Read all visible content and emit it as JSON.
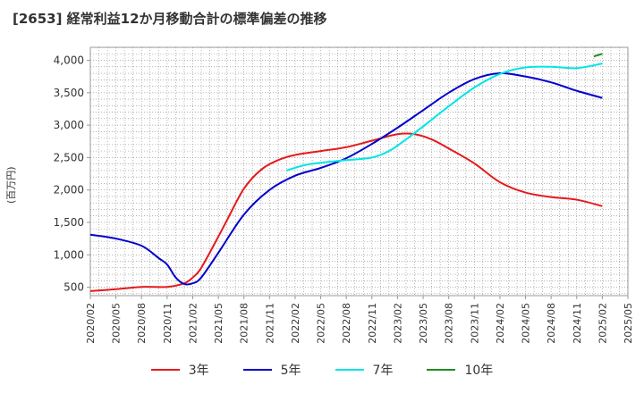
{
  "title": "[2653]  経常利益12か月移動合計の標準偏差の推移",
  "colors": {
    "grid": "#888888",
    "axis": "#999999",
    "tick": "#333333"
  },
  "chart_data": {
    "type": "line",
    "title": "[2653]  経常利益12か月移動合計の標準偏差の推移",
    "ylabel": "(百万円)",
    "xlabel": "",
    "ylim": [
      370,
      4200
    ],
    "x_tick_labels": [
      "2020/02",
      "2020/05",
      "2020/08",
      "2020/11",
      "2021/02",
      "2021/05",
      "2021/08",
      "2021/11",
      "2022/02",
      "2022/05",
      "2022/08",
      "2022/11",
      "2023/02",
      "2023/05",
      "2023/08",
      "2023/11",
      "2024/02",
      "2024/05",
      "2024/08",
      "2024/11",
      "2025/02",
      "2025/05"
    ],
    "y_ticks": [
      500,
      1000,
      1500,
      2000,
      2500,
      3000,
      3500,
      4000
    ],
    "y_tick_labels": [
      "500",
      "1,000",
      "1,500",
      "2,000",
      "2,500",
      "3,000",
      "3,500",
      "4,000"
    ],
    "grid": true,
    "legend_position": "bottom",
    "series": [
      {
        "name": "3年",
        "color": "#e41a1c",
        "points": [
          [
            "2020/02",
            440
          ],
          [
            "2020/05",
            470
          ],
          [
            "2020/08",
            505
          ],
          [
            "2020/11",
            505
          ],
          [
            "2021/01",
            560
          ],
          [
            "2021/02",
            650
          ],
          [
            "2021/03",
            800
          ],
          [
            "2021/05",
            1280
          ],
          [
            "2021/06",
            1530
          ],
          [
            "2021/08",
            2020
          ],
          [
            "2021/10",
            2310
          ],
          [
            "2021/12",
            2460
          ],
          [
            "2022/02",
            2540
          ],
          [
            "2022/05",
            2600
          ],
          [
            "2022/08",
            2660
          ],
          [
            "2022/11",
            2760
          ],
          [
            "2023/02",
            2860
          ],
          [
            "2023/04",
            2860
          ],
          [
            "2023/06",
            2780
          ],
          [
            "2023/08",
            2640
          ],
          [
            "2023/11",
            2410
          ],
          [
            "2024/02",
            2120
          ],
          [
            "2024/05",
            1960
          ],
          [
            "2024/08",
            1890
          ],
          [
            "2024/11",
            1850
          ],
          [
            "2025/02",
            1750
          ]
        ]
      },
      {
        "name": "5年",
        "color": "#0000cc",
        "points": [
          [
            "2020/02",
            1310
          ],
          [
            "2020/05",
            1250
          ],
          [
            "2020/08",
            1140
          ],
          [
            "2020/10",
            950
          ],
          [
            "2020/11",
            850
          ],
          [
            "2020/12",
            650
          ],
          [
            "2021/01",
            550
          ],
          [
            "2021/02",
            560
          ],
          [
            "2021/03",
            650
          ],
          [
            "2021/05",
            1030
          ],
          [
            "2021/08",
            1620
          ],
          [
            "2021/11",
            2000
          ],
          [
            "2022/02",
            2220
          ],
          [
            "2022/05",
            2340
          ],
          [
            "2022/08",
            2490
          ],
          [
            "2022/11",
            2710
          ],
          [
            "2023/02",
            2960
          ],
          [
            "2023/05",
            3230
          ],
          [
            "2023/08",
            3500
          ],
          [
            "2023/11",
            3710
          ],
          [
            "2024/02",
            3800
          ],
          [
            "2024/05",
            3750
          ],
          [
            "2024/08",
            3660
          ],
          [
            "2024/11",
            3530
          ],
          [
            "2025/02",
            3420
          ]
        ]
      },
      {
        "name": "7年",
        "color": "#00e5e5",
        "points": [
          [
            "2022/01",
            2300
          ],
          [
            "2022/03",
            2380
          ],
          [
            "2022/05",
            2420
          ],
          [
            "2022/08",
            2460
          ],
          [
            "2022/11",
            2500
          ],
          [
            "2023/01",
            2600
          ],
          [
            "2023/03",
            2780
          ],
          [
            "2023/05",
            2980
          ],
          [
            "2023/08",
            3290
          ],
          [
            "2023/11",
            3580
          ],
          [
            "2024/02",
            3790
          ],
          [
            "2024/05",
            3890
          ],
          [
            "2024/08",
            3900
          ],
          [
            "2024/11",
            3880
          ],
          [
            "2025/02",
            3950
          ]
        ]
      },
      {
        "name": "10年",
        "color": "#228b22",
        "points": [
          [
            "2025/01",
            4060
          ],
          [
            "2025/02",
            4100
          ]
        ]
      }
    ]
  }
}
